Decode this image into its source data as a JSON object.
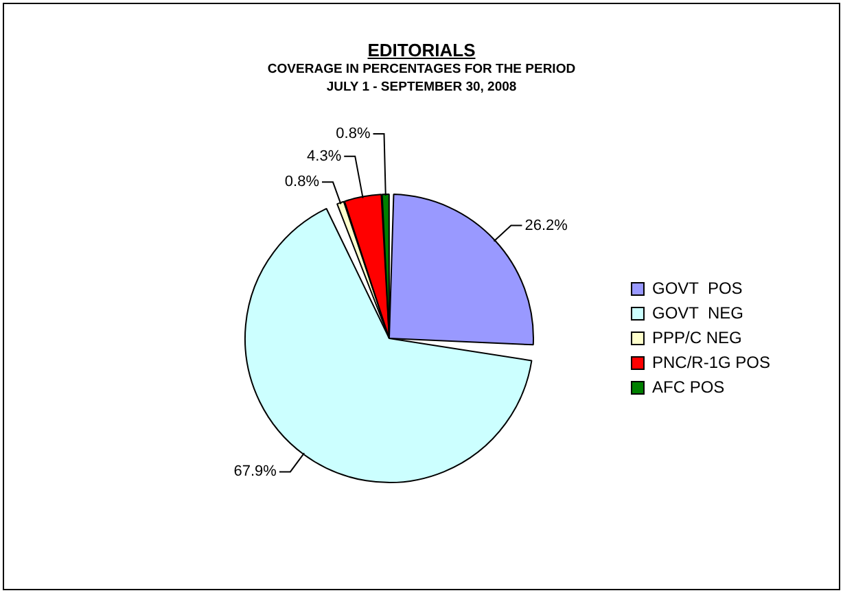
{
  "chart_data": {
    "type": "pie",
    "title": "EDITORIALS",
    "subtitle": "COVERAGE IN PERCENTAGES FOR THE PERIOD\nJULY 1 - SEPTEMBER 30, 2008",
    "categories": [
      "GOVT  POS",
      "GOVT  NEG",
      "PPP/C NEG",
      "PNC/R-1G POS",
      "AFC POS"
    ],
    "values": [
      26.2,
      67.9,
      0.8,
      4.3,
      0.8
    ],
    "value_labels": [
      "26.2%",
      "67.9%",
      "0.8%",
      "4.3%",
      "0.8%"
    ],
    "colors": [
      "#9999ff",
      "#ccffff",
      "#ffffcc",
      "#ff0000",
      "#008000"
    ],
    "legend": "right"
  }
}
